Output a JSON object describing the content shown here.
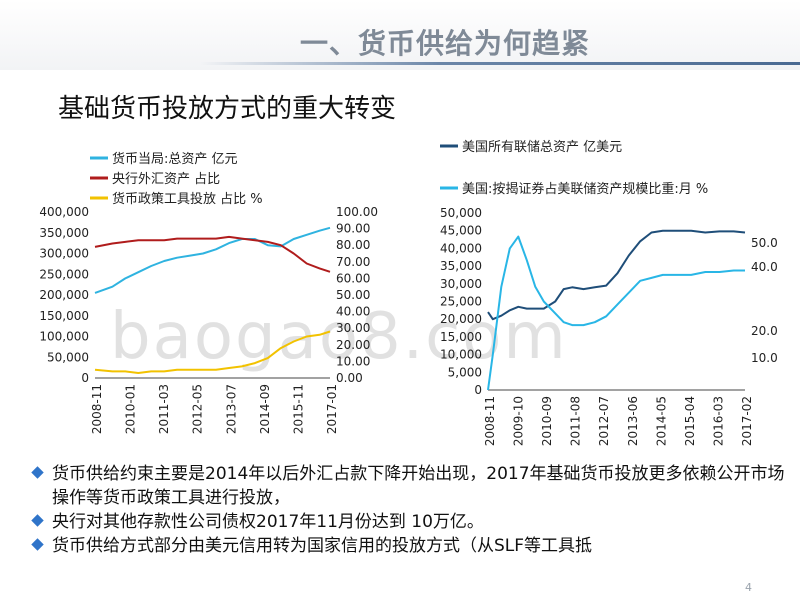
{
  "header": {
    "title": "一、货币供给为何趋紧"
  },
  "subtitle": "基础货币投放方式的重大转变",
  "watermark": "baogao8.com",
  "page_number": "4",
  "bullets": [
    "货币供给约束主要是2014年以后外汇占款下降开始出现，2017年基础货币投放更多依赖公开市场操作等货币政策工具进行投放，",
    "央行对其他存款性公司债权2017年11月份达到  10万亿。",
    "货币供给方式部分由美元信用转为国家信用的投放方式（从SLF等工具抵"
  ],
  "colors": {
    "cyan": "#2fb3e0",
    "darkred": "#b01c1c",
    "yellow": "#f2c200",
    "navy": "#1f4e79",
    "lightblue": "#29b6e6"
  },
  "chart_data": [
    {
      "type": "line",
      "legend": [
        "货币当局:总资产 亿元",
        "央行外汇资产 占比",
        "货币政策工具投放 占比 %"
      ],
      "x_ticks": [
        "2008-11",
        "2010-01",
        "2011-03",
        "2012-05",
        "2013-07",
        "2014-09",
        "2015-11",
        "2017-01"
      ],
      "x": [
        2008.83,
        2009.5,
        2010.0,
        2010.5,
        2011.0,
        2011.5,
        2012.0,
        2012.5,
        2013.0,
        2013.5,
        2014.0,
        2014.5,
        2015.0,
        2015.5,
        2016.0,
        2016.5,
        2017.0,
        2017.5,
        2017.9
      ],
      "y_left_ticks": [
        "400,000",
        "350,000",
        "300,000",
        "250,000",
        "200,000",
        "150,000",
        "100,000",
        "50,000",
        "0"
      ],
      "y_right_ticks": [
        "100.00",
        "90.00",
        "80.00",
        "70.00",
        "60.00",
        "50.00",
        "40.00",
        "30.00",
        "20.00",
        "10.00",
        "0.00"
      ],
      "ylim_left": [
        0,
        400000
      ],
      "ylim_right": [
        0,
        100
      ],
      "series": [
        {
          "name": "货币当局:总资产 亿元",
          "axis": "left",
          "color": "#2fb3e0",
          "values": [
            205000,
            220000,
            240000,
            255000,
            270000,
            282000,
            290000,
            295000,
            300000,
            310000,
            325000,
            335000,
            335000,
            320000,
            317000,
            335000,
            345000,
            355000,
            362000
          ]
        },
        {
          "name": "央行外汇资产 占比",
          "axis": "right",
          "color": "#b01c1c",
          "values": [
            79,
            81,
            82,
            83,
            83,
            83,
            84,
            84,
            84,
            84,
            85,
            84,
            83,
            82,
            80,
            75,
            69,
            66,
            64
          ]
        },
        {
          "name": "货币政策工具投放 占比 %",
          "axis": "right",
          "color": "#f2c200",
          "values": [
            5,
            4,
            4,
            3,
            4,
            4,
            5,
            5,
            5,
            5,
            6,
            7,
            9,
            12,
            18,
            22,
            25,
            26,
            28
          ]
        }
      ]
    },
    {
      "type": "line",
      "legend": [
        "美国所有联储总资产 亿美元",
        "美国:按揭证券占美联储资产规模比重:月 %"
      ],
      "x_ticks": [
        "2008-11",
        "2009-10",
        "2010-09",
        "2011-08",
        "2012-07",
        "2013-06",
        "2014-05",
        "2015-04",
        "2016-03",
        "2017-02"
      ],
      "x": [
        2008.83,
        2009.0,
        2009.3,
        2009.6,
        2009.9,
        2010.2,
        2010.5,
        2010.8,
        2011.2,
        2011.5,
        2011.8,
        2012.2,
        2012.6,
        2013.0,
        2013.4,
        2013.8,
        2014.2,
        2014.6,
        2015.0,
        2015.5,
        2016.0,
        2016.5,
        2017.0,
        2017.5,
        2017.9
      ],
      "y_left_ticks": [
        "50,000",
        "45,000",
        "40,000",
        "35,000",
        "30,000",
        "25,000",
        "20,000",
        "15,000",
        "10,000",
        "5,000",
        "0"
      ],
      "y_right_ticks": [
        "50.0",
        "40.0",
        "20.0",
        "10.0"
      ],
      "ylim_left": [
        0,
        50000
      ],
      "ylim_right": [
        0,
        60
      ],
      "series": [
        {
          "name": "美国所有联储总资产 亿美元",
          "axis": "left",
          "color": "#1f4e79",
          "values": [
            22000,
            20000,
            21000,
            22500,
            23500,
            23000,
            23000,
            23000,
            25000,
            28500,
            29000,
            28500,
            29000,
            29500,
            33000,
            38000,
            42000,
            44500,
            45000,
            45000,
            45000,
            44500,
            44800,
            44800,
            44500
          ]
        },
        {
          "name": "美国:按揭证券占美联储资产规模比重:月 %",
          "axis": "right",
          "color": "#29b6e6",
          "values": [
            0,
            12,
            35,
            48,
            52,
            44,
            35,
            30,
            26,
            23,
            22,
            22,
            23,
            25,
            29,
            33,
            37,
            38,
            39,
            39,
            39,
            40,
            40,
            40.5,
            40.5
          ]
        }
      ]
    }
  ]
}
